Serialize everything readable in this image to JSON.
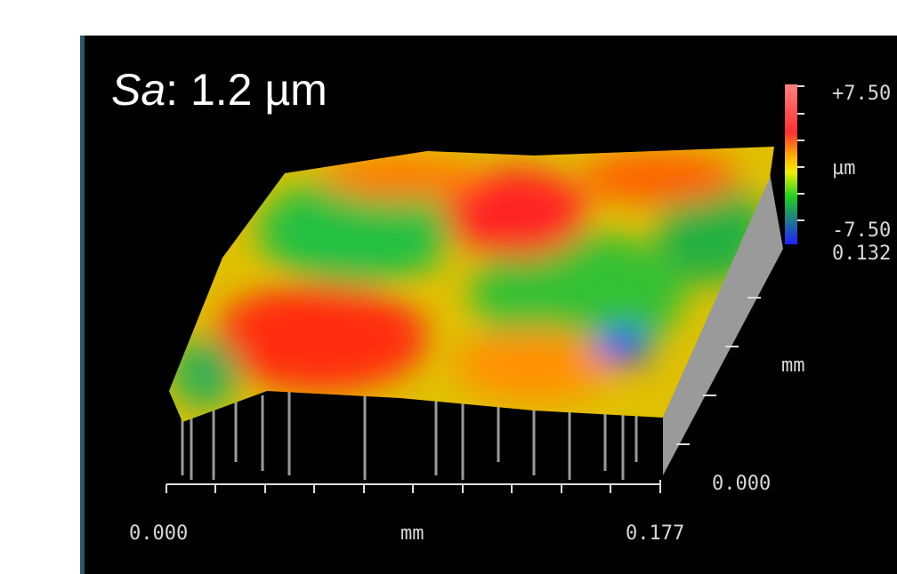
{
  "title": {
    "symbol": "Sa",
    "rest": ": 1.2 µm"
  },
  "x_axis": {
    "start": "0.000",
    "unit": "mm",
    "end": "0.177"
  },
  "y_axis": {
    "start": "0.000",
    "unit": "mm",
    "end": "0.132"
  },
  "color_scale": {
    "max": "+7.50",
    "unit": "µm",
    "min": "-7.50"
  }
}
